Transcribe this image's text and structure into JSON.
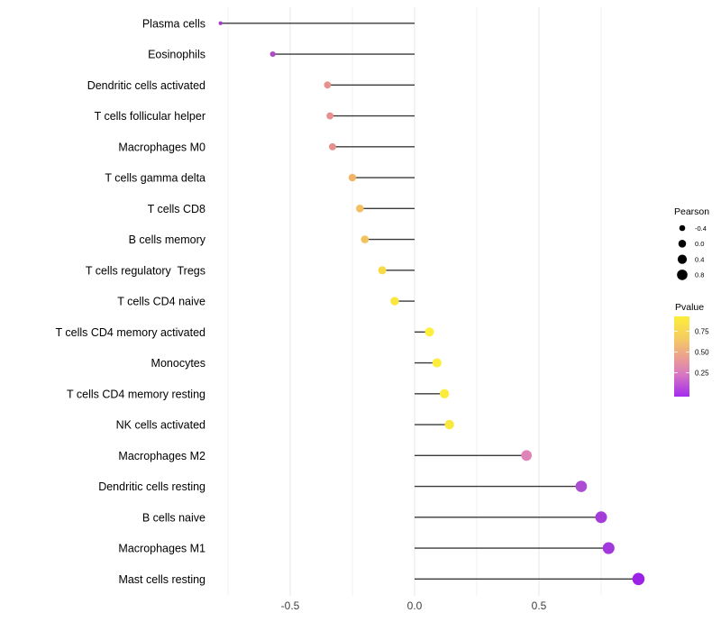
{
  "chart_data": {
    "type": "scatter",
    "style": "horizontal-lollipop",
    "title": "",
    "xlabel": "",
    "ylabel": "",
    "grid": "vertical-light",
    "xlim": [
      -0.85,
      0.97
    ],
    "x_zero_value": 0,
    "x_ticks_major": [
      -0.5,
      0.0,
      0.5
    ],
    "x_tick_labels": [
      "-0.5",
      "0.0",
      "0.5"
    ],
    "x_ticks_minor": [
      -0.75,
      -0.25,
      0.25,
      0.75
    ],
    "categories": [
      "Plasma cells",
      "Eosinophils",
      "Dendritic cells activated",
      "T cells follicular helper",
      "Macrophages M0",
      "T cells gamma delta",
      "T cells CD8",
      "B cells memory",
      "T cells regulatory  Tregs",
      "T cells CD4 naive",
      "T cells CD4 memory activated",
      "Monocytes",
      "T cells CD4 memory resting",
      "NK cells activated",
      "Macrophages M2",
      "Dendritic cells resting",
      "B cells naive",
      "Macrophages M1",
      "Mast cells resting"
    ],
    "series": [
      {
        "name": "Pearson",
        "values": [
          -0.78,
          -0.57,
          -0.35,
          -0.34,
          -0.33,
          -0.25,
          -0.22,
          -0.2,
          -0.13,
          -0.08,
          0.06,
          0.09,
          0.12,
          0.14,
          0.45,
          0.67,
          0.75,
          0.78,
          0.9
        ]
      }
    ],
    "point_colors": [
      "#A238CC",
      "#AF4BC8",
      "#E8908C",
      "#E69090",
      "#E4918E",
      "#F2B464",
      "#F3C061",
      "#F2C35C",
      "#F7DB47",
      "#FAE73D",
      "#FDF03A",
      "#FCEE3A",
      "#FBEB3C",
      "#FAE83E",
      "#DE84B8",
      "#AC4DD4",
      "#A53CDA",
      "#A338DC",
      "#9B22E6"
    ],
    "stem_color": "#3A3A3A",
    "grid_major_color": "#E7E7E7",
    "grid_minor_color": "#F2F2F2",
    "axis_text_color": "#404040",
    "legend": {
      "position": "right",
      "pearson": {
        "title": "Pearson",
        "dot_color": "#000000",
        "items": [
          {
            "label": "-0.4",
            "value": -0.4
          },
          {
            "label": "0.0",
            "value": 0.0
          },
          {
            "label": "0.4",
            "value": 0.4
          },
          {
            "label": "0.8",
            "value": 0.8
          }
        ]
      },
      "pvalue": {
        "title": "Pvalue",
        "tick_labels": [
          "0.75",
          "0.50",
          "0.25"
        ],
        "gradient_top_to_bottom": [
          "#FCEE3A",
          "#F5CB63",
          "#ECA18F",
          "#D878C0",
          "#A42BEE"
        ]
      }
    }
  }
}
